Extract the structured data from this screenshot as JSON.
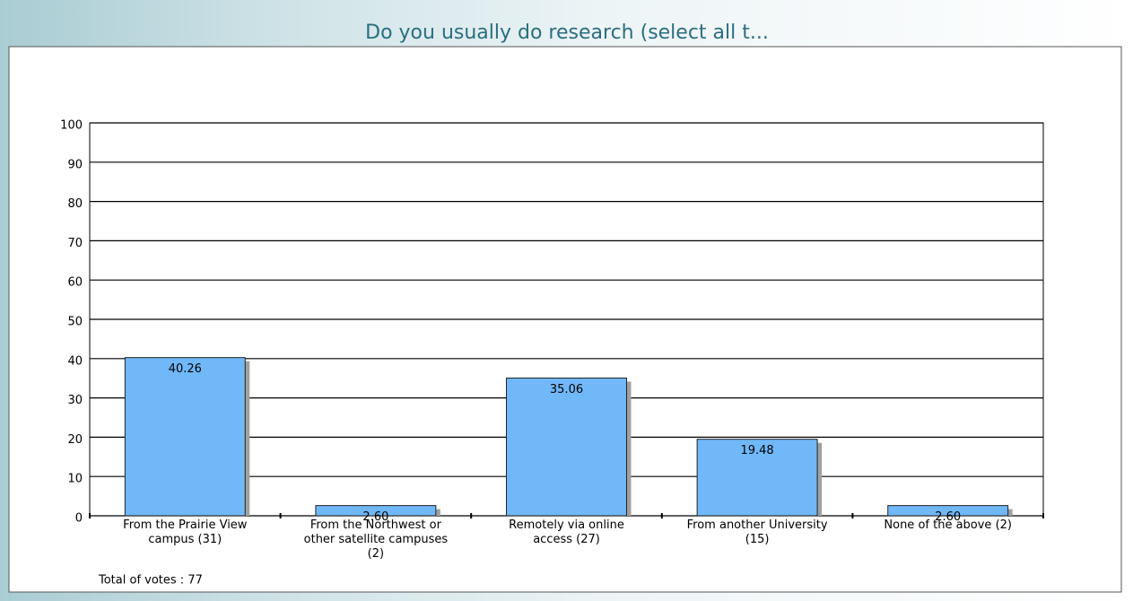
{
  "chart_data": {
    "type": "bar",
    "title": "Do you usually do research (select all t...",
    "categories": [
      "From the Prairie View campus (31)",
      "From the Northwest or other satellite campuses (2)",
      "Remotely via online access (27)",
      "From another University (15)",
      "None of the above (2)"
    ],
    "values": [
      40.26,
      2.6,
      35.06,
      19.48,
      2.6
    ],
    "value_labels": [
      "40.26",
      "2.60",
      "35.06",
      "19.48",
      "2.60"
    ],
    "color": "#70b8f8",
    "ylim": [
      0,
      100
    ],
    "yticks": [
      0,
      10,
      20,
      30,
      40,
      50,
      60,
      70,
      80,
      90,
      100
    ],
    "grid": true,
    "footer": "Total of votes : 77"
  }
}
